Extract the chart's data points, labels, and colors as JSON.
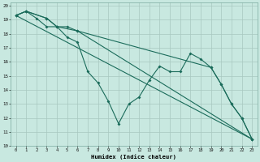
{
  "xlabel": "Humidex (Indice chaleur)",
  "bg_color": "#c8e8e0",
  "line_color": "#1a6b5a",
  "grid_color": "#a8c8c0",
  "xlim": [
    -0.5,
    23.5
  ],
  "ylim": [
    10,
    20.2
  ],
  "xticks": [
    0,
    1,
    2,
    3,
    4,
    5,
    6,
    7,
    8,
    9,
    10,
    11,
    12,
    13,
    14,
    15,
    16,
    17,
    18,
    19,
    20,
    21,
    22,
    23
  ],
  "yticks": [
    10,
    11,
    12,
    13,
    14,
    15,
    16,
    17,
    18,
    19,
    20
  ],
  "line1_x": [
    0,
    1,
    2,
    3,
    4,
    5,
    6,
    7,
    8,
    9,
    10,
    11,
    12,
    13,
    14,
    15,
    16,
    17,
    18,
    19,
    20,
    21,
    22,
    23
  ],
  "line1_y": [
    19.3,
    19.6,
    19.1,
    18.5,
    18.5,
    17.75,
    17.4,
    15.3,
    14.5,
    13.2,
    11.6,
    13.0,
    13.5,
    14.7,
    15.7,
    15.3,
    15.3,
    16.6,
    16.2,
    15.6,
    14.4,
    13.0,
    12.0,
    10.5
  ],
  "line2_x": [
    0,
    1,
    3,
    4,
    5,
    6,
    19,
    20,
    21,
    22,
    23
  ],
  "line2_y": [
    19.3,
    19.6,
    19.1,
    18.5,
    18.5,
    18.2,
    15.6,
    14.4,
    13.0,
    12.0,
    10.5
  ],
  "line3_x": [
    0,
    1,
    3,
    4,
    6,
    23
  ],
  "line3_y": [
    19.3,
    19.6,
    19.1,
    18.5,
    18.2,
    10.5
  ],
  "line4_x": [
    0,
    23
  ],
  "line4_y": [
    19.3,
    10.5
  ]
}
